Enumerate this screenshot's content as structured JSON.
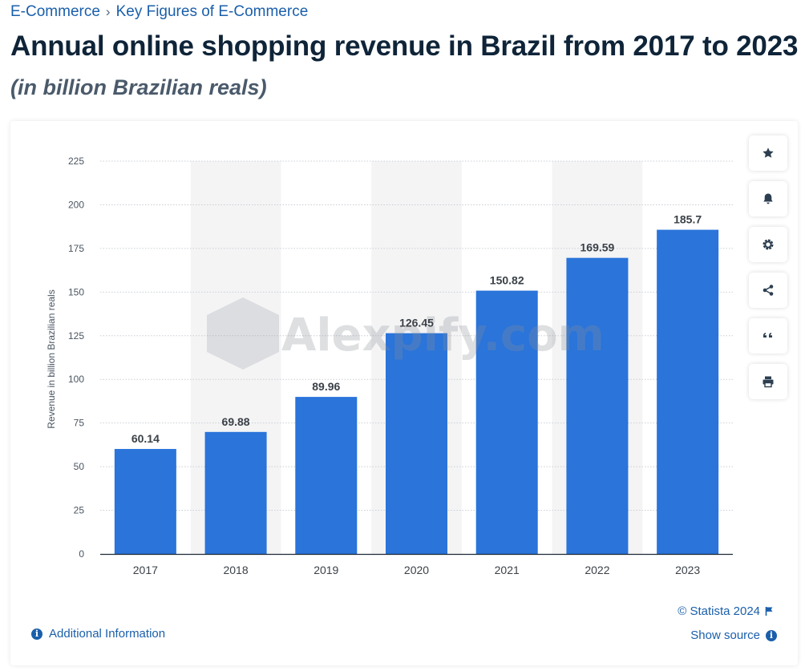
{
  "breadcrumb": {
    "items": [
      "E-Commerce",
      "Key Figures of E-Commerce"
    ],
    "separator": "›"
  },
  "page_title": "Annual online shopping revenue in Brazil from 2017 to 2023",
  "page_subtitle": "(in billion Brazilian reals)",
  "watermark": "Alexpify.com",
  "footer": {
    "copyright": "© Statista 2024",
    "show_source": "Show source",
    "additional_info": "Additional Information"
  },
  "toolbar": {
    "icons": [
      "star-icon",
      "bell-icon",
      "gear-icon",
      "share-icon",
      "quote-icon",
      "print-icon"
    ]
  },
  "colors": {
    "bar": "#2a74da",
    "link": "#1a5fab",
    "title": "#0f2438",
    "band": "#f4f4f5"
  },
  "chart_data": {
    "type": "bar",
    "categories": [
      "2017",
      "2018",
      "2019",
      "2020",
      "2021",
      "2022",
      "2023"
    ],
    "values": [
      60.14,
      69.88,
      89.96,
      126.45,
      150.82,
      169.59,
      185.7
    ],
    "value_labels": [
      "60.14",
      "69.88",
      "89.96",
      "126.45",
      "150.82",
      "169.59",
      "185.7"
    ],
    "ylabel": "Revenue in billion Brazilian reals",
    "xlabel": "",
    "ylim": [
      0,
      225
    ],
    "yticks": [
      "0",
      "25",
      "50",
      "75",
      "100",
      "125",
      "150",
      "175",
      "200",
      "225"
    ],
    "grid": true,
    "legend": "none"
  }
}
